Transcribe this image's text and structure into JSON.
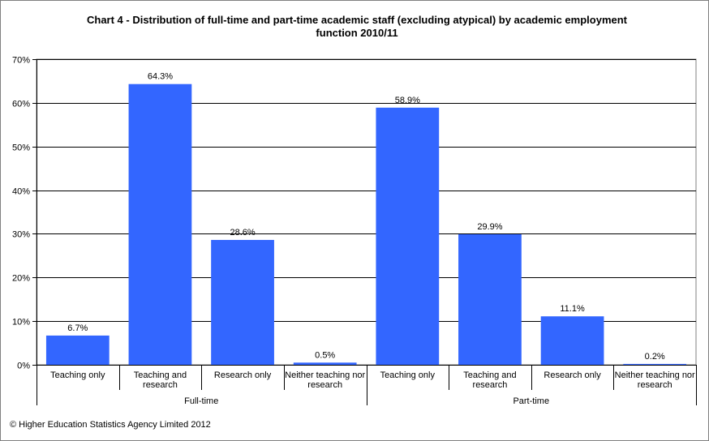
{
  "chart_data": {
    "type": "bar",
    "title_line1": "Chart 4 - Distribution  of full-time and part-time academic staff  (excluding atypical) by academic employment",
    "title_line2": "function 2010/11",
    "groups": [
      {
        "name": "Full-time",
        "categories": [
          [
            "Teaching only"
          ],
          [
            "Teaching and",
            "research"
          ],
          [
            "Research only"
          ],
          [
            "Neither teaching nor",
            "research"
          ]
        ],
        "values": [
          6.7,
          64.3,
          28.6,
          0.5
        ],
        "value_labels": [
          "6.7%",
          "64.3%",
          "28.6%",
          "0.5%"
        ]
      },
      {
        "name": "Part-time",
        "categories": [
          [
            "Teaching only"
          ],
          [
            "Teaching and",
            "research"
          ],
          [
            "Research only"
          ],
          [
            "Neither teaching nor",
            "research"
          ]
        ],
        "values": [
          58.9,
          29.9,
          11.1,
          0.2
        ],
        "value_labels": [
          "58.9%",
          "29.9%",
          "11.1%",
          "0.2%"
        ]
      }
    ],
    "ylim": [
      0,
      70
    ],
    "yticks": [
      0,
      10,
      20,
      30,
      40,
      50,
      60,
      70
    ],
    "ytick_labels": [
      "0%",
      "10%",
      "20%",
      "30%",
      "40%",
      "50%",
      "60%",
      "70%"
    ],
    "grid": true,
    "bar_color": "#3366ff"
  },
  "footer": "© Higher Education Statistics Agency Limited 2012"
}
